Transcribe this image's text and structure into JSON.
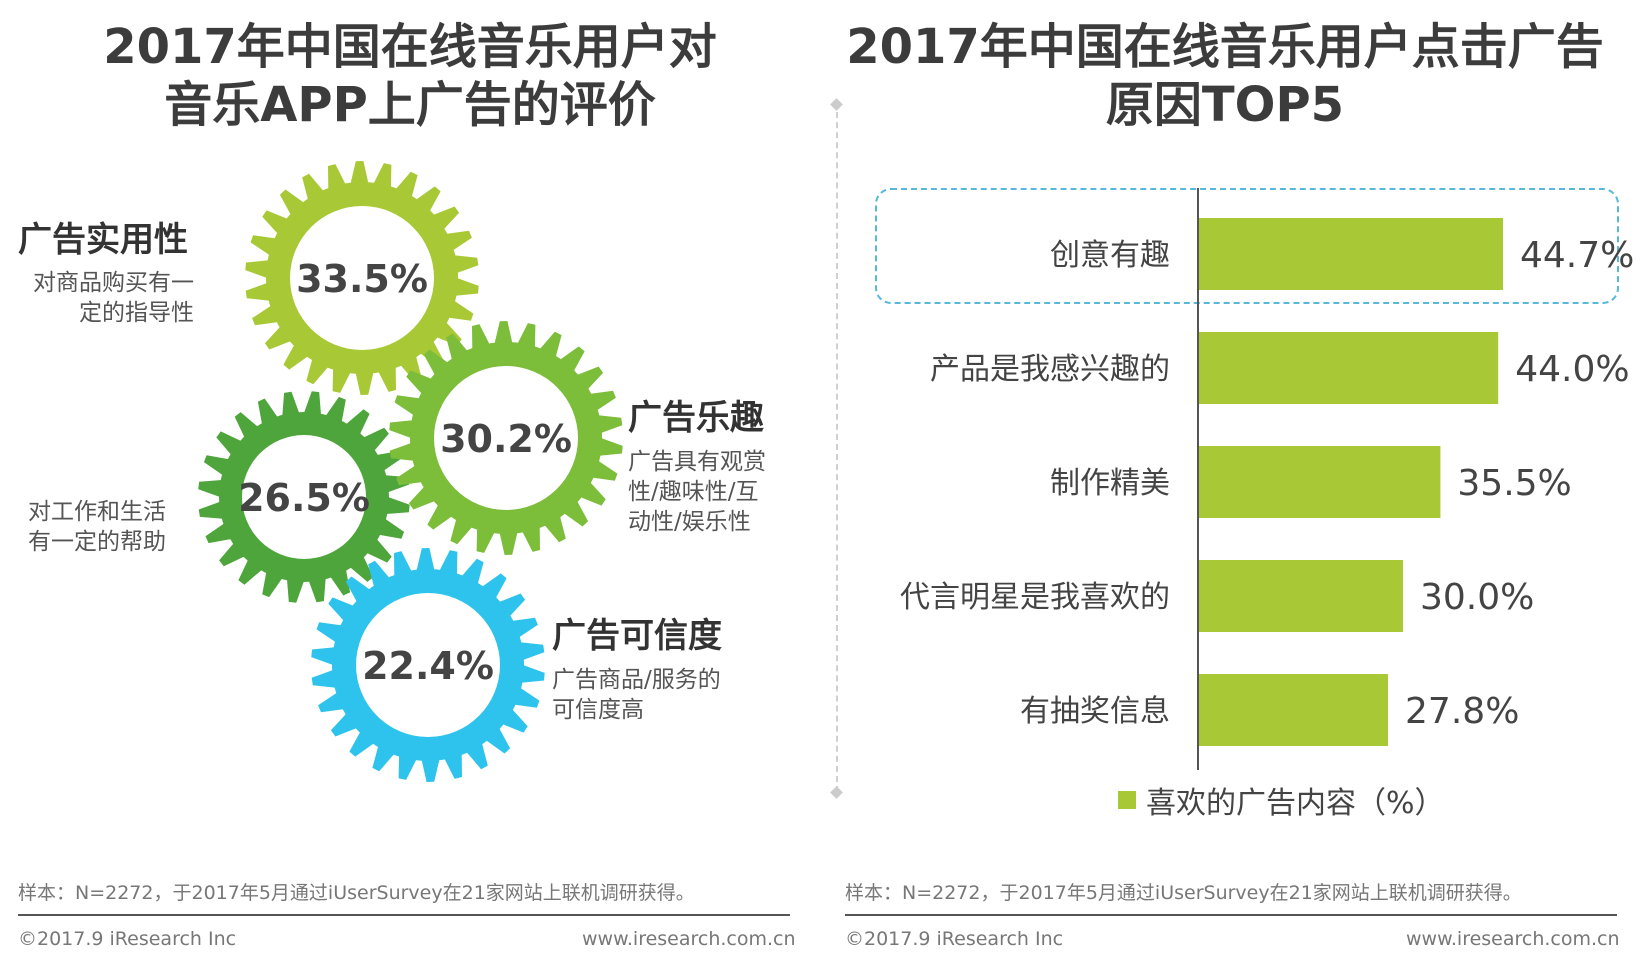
{
  "left": {
    "title_line1": "2017年中国在线音乐用户对",
    "title_line2": "音乐APP上广告的评价",
    "gears": [
      {
        "value": "33.5%",
        "color": "#a8c935",
        "title": "广告实用性",
        "desc_line1": "对商品购买有一",
        "desc_line2": "定的指导性",
        "desc_line3": ""
      },
      {
        "value": "30.2%",
        "color": "#7cbd3a",
        "title": "广告乐趣",
        "desc_line1": "广告具有观赏",
        "desc_line2": "性/趣味性/互",
        "desc_line3": "动性/娱乐性"
      },
      {
        "value": "26.5%",
        "color": "#4ea53c",
        "title": "",
        "desc_line1": "对工作和生活",
        "desc_line2": "有一定的帮助",
        "desc_line3": ""
      },
      {
        "value": "22.4%",
        "color": "#2ec3ec",
        "title": "广告可信度",
        "desc_line1": "广告商品/服务的",
        "desc_line2": "可信度高",
        "desc_line3": ""
      }
    ],
    "footnote": "样本：N=2272，于2017年5月通过iUserSurvey在21家网站上联机调研获得。",
    "copyright": "©2017.9 iResearch Inc",
    "website": "www.iresearch.com.cn"
  },
  "right": {
    "title_line1": "2017年中国在线音乐用户点击广告",
    "title_line2": "原因TOP5",
    "footnote": "样本：N=2272，于2017年5月通过iUserSurvey在21家网站上联机调研获得。",
    "copyright": "©2017.9 iResearch Inc",
    "website": "www.iresearch.com.cn"
  },
  "chart_data": {
    "type": "bar",
    "orientation": "horizontal",
    "categories": [
      "创意有趣",
      "产品是我感兴趣的",
      "制作精美",
      "代言明星是我喜欢的",
      "有抽奖信息"
    ],
    "values": [
      44.7,
      44.0,
      35.5,
      30.0,
      27.8
    ],
    "value_labels": [
      "44.7%",
      "44.0%",
      "35.5%",
      "30.0%",
      "27.8%"
    ],
    "legend": "喜欢的广告内容（%）",
    "bar_color": "#a8c935",
    "highlighted_category": "创意有趣"
  }
}
